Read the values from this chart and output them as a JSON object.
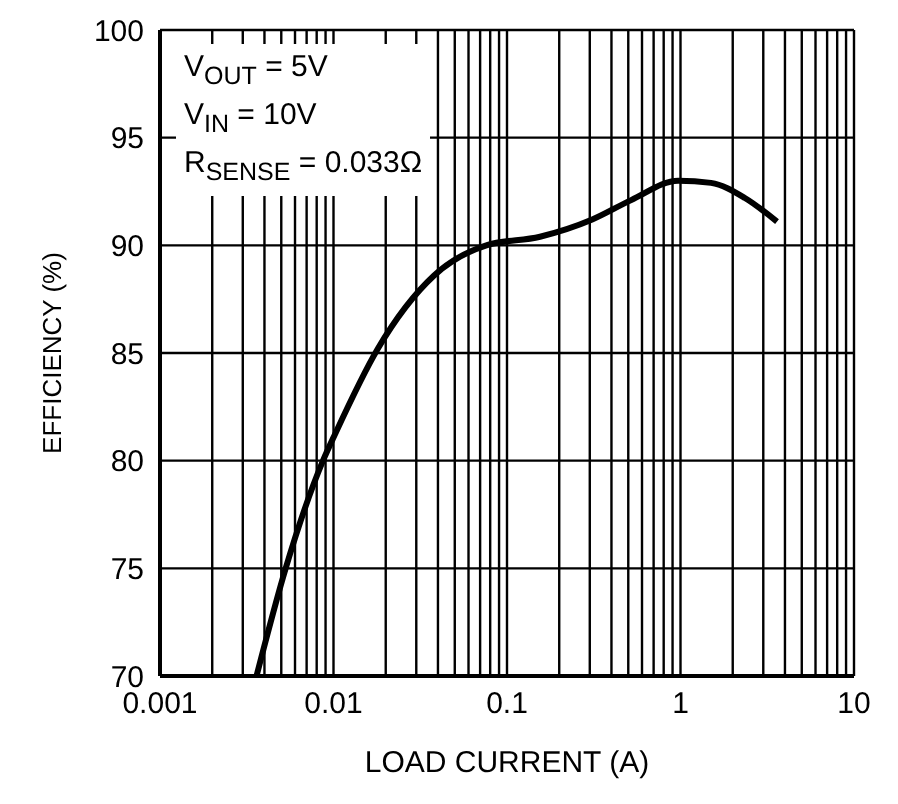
{
  "chart_data": {
    "type": "line",
    "xlabel": "LOAD CURRENT (A)",
    "ylabel": "EFFICIENCY (%)",
    "log": "x",
    "grid": true,
    "marker": "none",
    "line_style": "solid",
    "annotations": [
      "V$_{OUT}$ = 5V",
      "V$_{IN}$ = 10V",
      "R$_{SENSE}$ = 0.033Ω"
    ],
    "xlim": [
      0.001,
      10
    ],
    "ylim": [
      70,
      100
    ],
    "xticks": [
      0.001,
      {
        "value": 0.002,
        "label": null
      },
      {
        "value": 0.003,
        "label": null
      },
      {
        "value": 0.004,
        "label": null
      },
      {
        "value": 0.005,
        "label": null
      },
      {
        "value": 0.006,
        "label": null
      },
      {
        "value": 0.007,
        "label": null
      },
      {
        "value": 0.008,
        "label": null
      },
      {
        "value": 0.009,
        "label": null
      },
      0.01,
      {
        "value": 0.02,
        "label": null
      },
      {
        "value": 0.03,
        "label": null
      },
      {
        "value": 0.04,
        "label": null
      },
      {
        "value": 0.05,
        "label": null
      },
      {
        "value": 0.06,
        "label": null
      },
      {
        "value": 0.07,
        "label": null
      },
      {
        "value": 0.08,
        "label": null
      },
      {
        "value": 0.09,
        "label": null
      },
      0.1,
      {
        "value": 0.2,
        "label": null
      },
      {
        "value": 0.3,
        "label": null
      },
      {
        "value": 0.4,
        "label": null
      },
      {
        "value": 0.5,
        "label": null
      },
      {
        "value": 0.6,
        "label": null
      },
      {
        "value": 0.7,
        "label": null
      },
      {
        "value": 0.8,
        "label": null
      },
      {
        "value": 0.9,
        "label": null
      },
      1,
      {
        "value": 2,
        "label": null
      },
      {
        "value": 3,
        "label": null
      },
      {
        "value": 4,
        "label": null
      },
      {
        "value": 5,
        "label": null
      },
      {
        "value": 6,
        "label": null
      },
      {
        "value": 7,
        "label": null
      },
      {
        "value": 8,
        "label": null
      },
      {
        "value": 9,
        "label": null
      },
      10
    ],
    "yticks": [
      70,
      75,
      80,
      85,
      90,
      95,
      100
    ],
    "series": [
      {
        "color": "#000000",
        "x": [
          0.0036,
          0.0053,
          0.0087,
          0.0103,
          0.018,
          0.038,
          0.076,
          0.155,
          0.31,
          0.52,
          0.97,
          1.5,
          2.35,
          3.6
        ],
        "values": [
          70,
          75,
          80,
          81.3,
          85.2,
          88.6,
          90.0,
          90.4,
          91.2,
          92.1,
          93.0,
          92.9,
          92.2,
          91.1
        ]
      }
    ]
  }
}
